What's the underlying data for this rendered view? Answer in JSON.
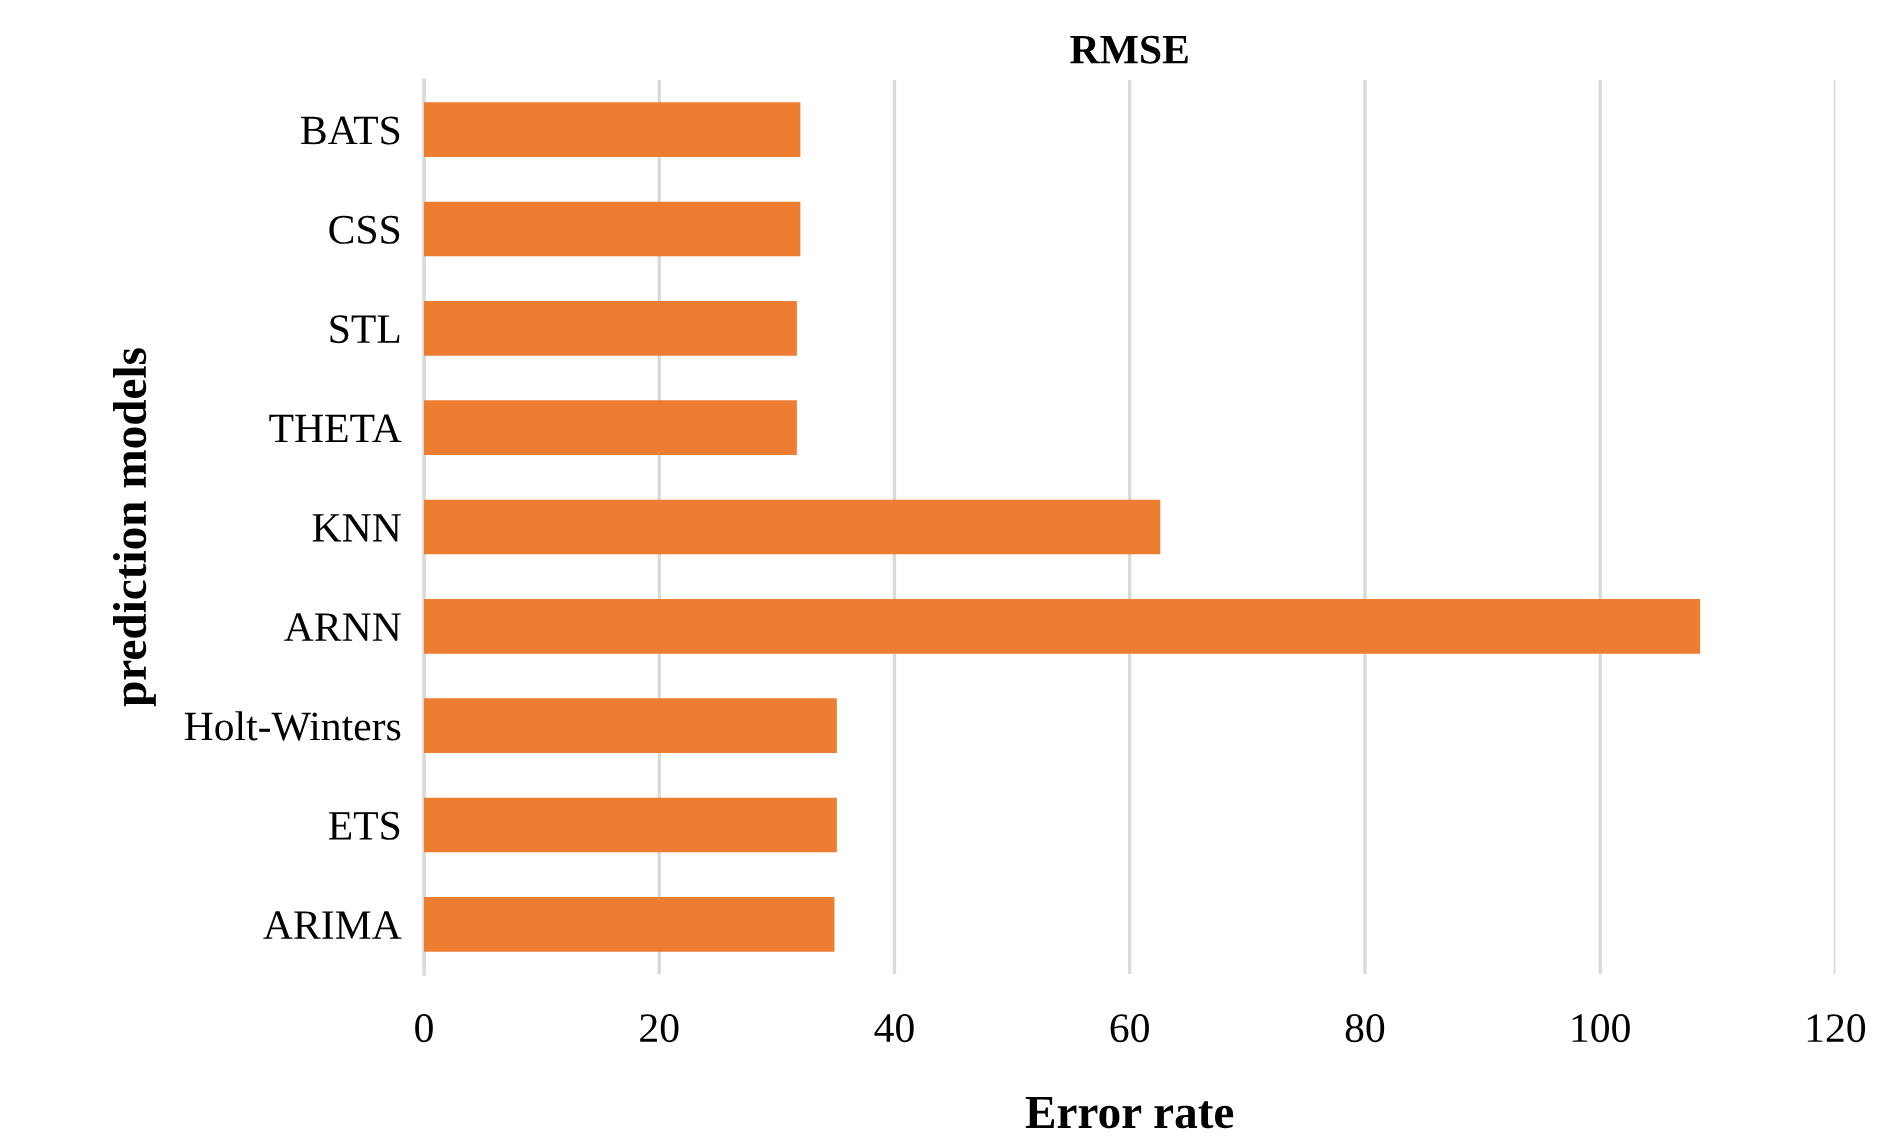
{
  "chart_data": {
    "type": "bar",
    "orientation": "horizontal",
    "title": "RMSE",
    "xlabel": "Error rate",
    "ylabel": "prediction models",
    "categories": [
      "BATS",
      "CSS",
      "STL",
      "THETA",
      "KNN",
      "ARNN",
      "Holt-Winters",
      "ETS",
      "ARIMA"
    ],
    "values": [
      32.0,
      32.0,
      31.7,
      31.7,
      62.6,
      108.5,
      35.1,
      35.1,
      34.9
    ],
    "color": "#ed7d31",
    "xlim": [
      0,
      120
    ],
    "xticks": [
      0,
      20,
      40,
      60,
      80,
      100,
      120
    ],
    "grid": "x",
    "legend": false
  }
}
